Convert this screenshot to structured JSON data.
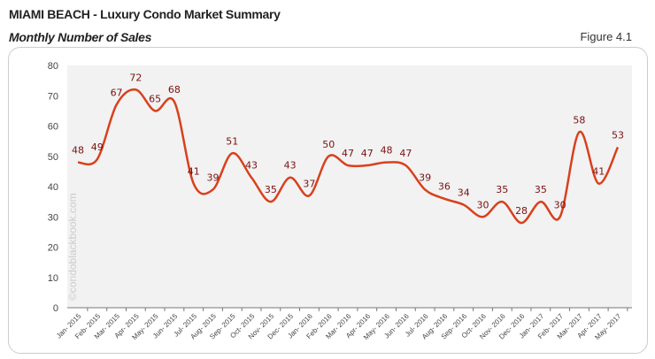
{
  "header": {
    "title": "MIAMI BEACH - Luxury Condo Market Summary",
    "subtitle": "Monthly Number of Sales",
    "figure": "Figure 4.1"
  },
  "watermark": "©condoblackbook.com",
  "chart_data": {
    "type": "line",
    "categories": [
      "Jan- 2015",
      "Feb- 2015",
      "Mar- 2015",
      "Apr- 2015",
      "May- 2015",
      "Jun- 2015",
      "Jul- 2015",
      "Aug- 2015",
      "Sep- 2015",
      "Oct- 2015",
      "Nov- 2015",
      "Dec- 2015",
      "Jan- 2016",
      "Feb- 2016",
      "Mar- 2016",
      "Apr- 2016",
      "May- 2016",
      "Jun- 2016",
      "Jul- 2016",
      "Aug- 2016",
      "Sep- 2016",
      "Oct- 2016",
      "Nov- 2016",
      "Dec- 2016",
      "Jan- 2017",
      "Feb- 2017",
      "Mar- 2017",
      "Apr- 2017",
      "May- 2017"
    ],
    "values": [
      48,
      49,
      67,
      72,
      65,
      68,
      41,
      39,
      51,
      43,
      35,
      43,
      37,
      50,
      47,
      47,
      48,
      47,
      39,
      36,
      34,
      30,
      35,
      28,
      35,
      30,
      58,
      41,
      53
    ],
    "ylim": [
      0,
      80
    ],
    "yticks": [
      0,
      10,
      20,
      30,
      40,
      50,
      60,
      70,
      80
    ],
    "grid": false,
    "line_color": "#d9401c",
    "label_color": "#7a1010",
    "plot_bg": "#f2f2f2"
  }
}
